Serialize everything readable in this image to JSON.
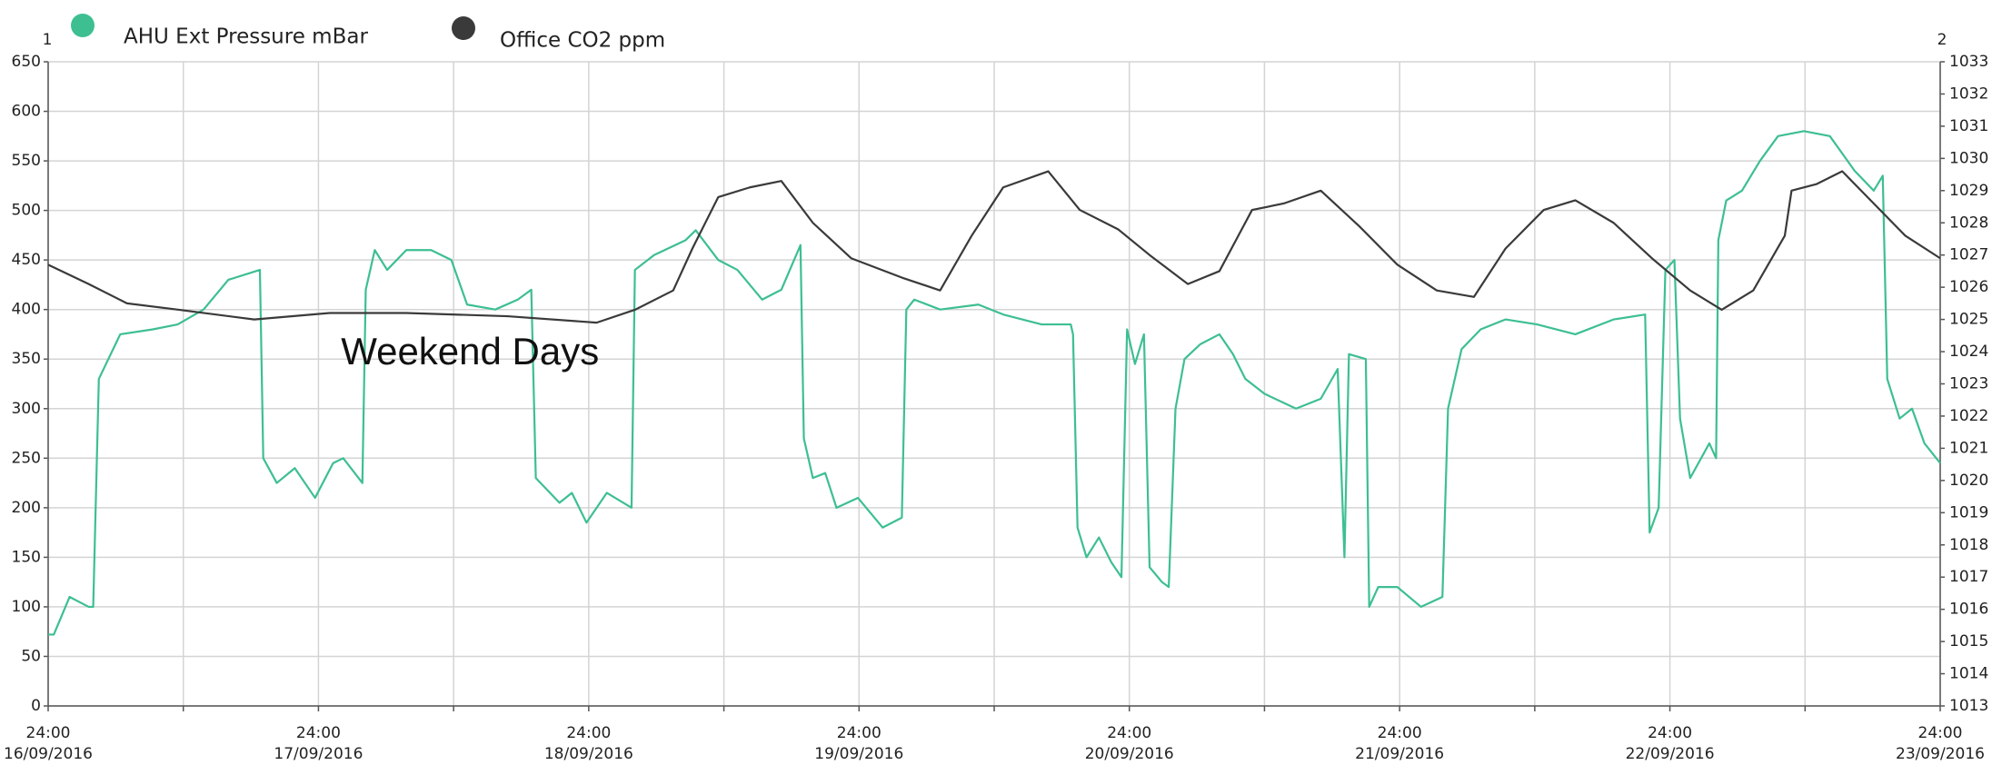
{
  "chart_data": {
    "type": "line",
    "ylabel": "1",
    "y2label": "2",
    "annotation": {
      "text": "Weekend Days",
      "x": 26,
      "y": 355
    },
    "ylim": [
      0,
      650
    ],
    "yticks": [
      0,
      50,
      100,
      150,
      200,
      250,
      300,
      350,
      400,
      450,
      500,
      550,
      600,
      650
    ],
    "y2lim": [
      1013,
      1033
    ],
    "y2ticks": [
      1013,
      1014,
      1015,
      1016,
      1017,
      1018,
      1019,
      1020,
      1021,
      1022,
      1023,
      1024,
      1025,
      1026,
      1027,
      1028,
      1029,
      1030,
      1031,
      1032,
      1033
    ],
    "xlim": [
      0,
      168
    ],
    "xticks": [
      {
        "value": 0,
        "label": "24:00",
        "sublabel": "16/09/2016"
      },
      {
        "value": 24,
        "label": "24:00",
        "sublabel": "17/09/2016"
      },
      {
        "value": 48,
        "label": "24:00",
        "sublabel": "18/09/2016"
      },
      {
        "value": 72,
        "label": "24:00",
        "sublabel": "19/09/2016"
      },
      {
        "value": 96,
        "label": "24:00",
        "sublabel": "20/09/2016"
      },
      {
        "value": 120,
        "label": "24:00",
        "sublabel": "21/09/2016"
      },
      {
        "value": 144,
        "label": "24:00",
        "sublabel": "22/09/2016"
      },
      {
        "value": 168,
        "label": "24:00",
        "sublabel": "23/09/2016"
      }
    ],
    "xminor": [
      12,
      36,
      60,
      84,
      108,
      132,
      156
    ],
    "grid": true,
    "series": [
      {
        "name": "AHU Ext Pressure mBar",
        "color": "#3dbf91",
        "axis": "y",
        "x": [
          0,
          0.5,
          1.9,
          3.6,
          4.0,
          4.5,
          6.4,
          9.3,
          11.5,
          13.8,
          16.0,
          18.8,
          19.1,
          20.3,
          21.9,
          23.7,
          25.3,
          26.2,
          27.9,
          28.2,
          29.0,
          30.1,
          31.8,
          34.0,
          35.8,
          37.2,
          39.7,
          41.7,
          42.9,
          43.3,
          45.4,
          46.5,
          47.8,
          49.6,
          51.8,
          52.1,
          53.8,
          56.6,
          57.5,
          59.5,
          61.2,
          63.4,
          65.1,
          66.8,
          67.1,
          67.9,
          69.0,
          70.0,
          71.9,
          74.1,
          75.8,
          76.2,
          76.9,
          79.2,
          82.6,
          84.8,
          88.2,
          90.8,
          91.0,
          91.4,
          92.2,
          93.3,
          94.4,
          95.3,
          95.8,
          96.5,
          97.3,
          97.8,
          98.9,
          99.5,
          100.1,
          100.9,
          102.3,
          104.0,
          105.2,
          106.3,
          108.0,
          110.8,
          113.0,
          114.5,
          115.1,
          115.5,
          117.0,
          117.3,
          118.1,
          119.8,
          121.9,
          123.8,
          124.3,
          125.5,
          127.2,
          129.4,
          132.2,
          135.6,
          139.0,
          141.8,
          142.2,
          143.0,
          143.6,
          144.4,
          144.9,
          145.8,
          147.5,
          148.1,
          148.3,
          149.0,
          150.4,
          152.0,
          153.6,
          155.9,
          158.2,
          160.4,
          162.1,
          162.9,
          163.3,
          164.4,
          165.5,
          166.6,
          168.0
        ],
        "values": [
          72,
          72,
          110,
          100,
          100,
          330,
          375,
          380,
          385,
          400,
          430,
          440,
          250,
          225,
          240,
          210,
          245,
          250,
          225,
          420,
          460,
          440,
          460,
          460,
          450,
          405,
          400,
          410,
          420,
          230,
          205,
          215,
          185,
          215,
          200,
          440,
          455,
          470,
          480,
          450,
          440,
          410,
          420,
          465,
          270,
          230,
          235,
          200,
          210,
          180,
          190,
          400,
          410,
          400,
          405,
          395,
          385,
          385,
          375,
          180,
          150,
          170,
          145,
          130,
          380,
          345,
          375,
          140,
          125,
          120,
          300,
          350,
          365,
          375,
          355,
          330,
          315,
          300,
          310,
          340,
          150,
          355,
          350,
          100,
          120,
          120,
          100,
          110,
          300,
          360,
          380,
          390,
          385,
          375,
          390,
          395,
          175,
          200,
          440,
          450,
          290,
          230,
          265,
          250,
          470,
          510,
          520,
          550,
          575,
          580,
          575,
          540,
          520,
          535,
          330,
          290,
          300,
          265,
          245
        ]
      },
      {
        "name": "Office CO2 ppm",
        "color": "#3a3a3a",
        "axis": "y2",
        "x": [
          0,
          3.6,
          7.0,
          11.6,
          18.3,
          25.0,
          31.8,
          40.8,
          48.7,
          52.1,
          55.5,
          57.2,
          59.5,
          62.3,
          65.1,
          67.9,
          71.3,
          75.8,
          79.2,
          82.0,
          84.8,
          88.8,
          91.6,
          95.0,
          97.8,
          101.2,
          104.0,
          106.9,
          109.7,
          113.0,
          116.4,
          119.8,
          123.3,
          126.6,
          129.4,
          132.8,
          135.6,
          139.0,
          142.4,
          145.8,
          148.6,
          151.4,
          154.2,
          154.8,
          157.0,
          159.3,
          162.1,
          164.9,
          168.0
        ],
        "values": [
          1026.7,
          1026.1,
          1025.5,
          1025.3,
          1025.0,
          1025.2,
          1025.2,
          1025.1,
          1024.9,
          1025.3,
          1025.9,
          1027.2,
          1028.8,
          1029.1,
          1029.3,
          1028.0,
          1026.9,
          1026.3,
          1025.9,
          1027.6,
          1029.1,
          1029.6,
          1028.4,
          1027.8,
          1027.0,
          1026.1,
          1026.5,
          1028.4,
          1028.6,
          1029.0,
          1027.9,
          1026.7,
          1025.9,
          1025.7,
          1027.2,
          1028.4,
          1028.7,
          1028.0,
          1026.9,
          1025.9,
          1025.3,
          1025.9,
          1027.6,
          1029.0,
          1029.2,
          1029.6,
          1028.6,
          1027.6,
          1026.9
        ]
      }
    ]
  }
}
